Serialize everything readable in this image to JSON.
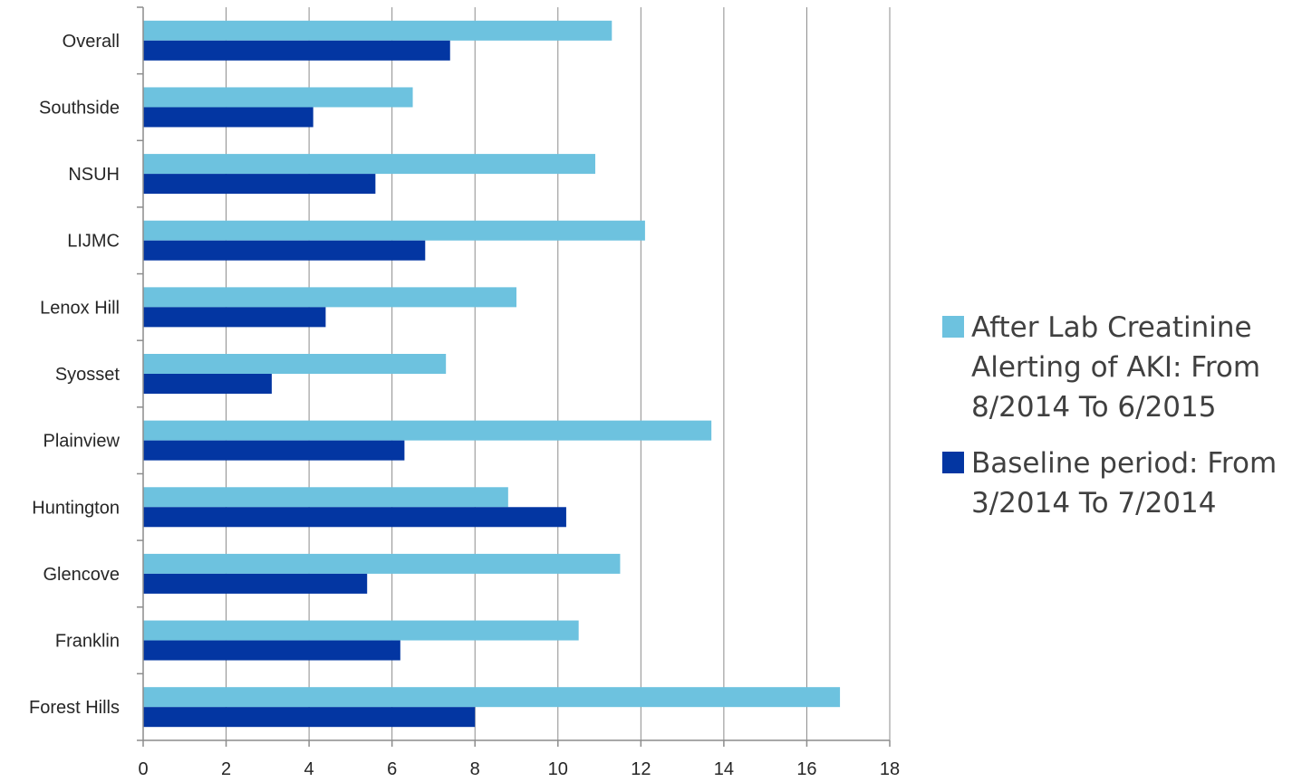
{
  "chart_data": {
    "type": "bar",
    "orientation": "horizontal",
    "categories": [
      "Overall",
      "Southside",
      "NSUH",
      "LIJMC",
      "Lenox Hill",
      "Syosset",
      "Plainview",
      "Huntington",
      "Glencove",
      "Franklin",
      "Forest Hills"
    ],
    "series": [
      {
        "name": "After Lab Creatinine Alerting of AKI: From 8/2014 To 6/2015",
        "color": "#6dc2df",
        "values": [
          11.3,
          6.5,
          10.9,
          12.1,
          9.0,
          7.3,
          13.7,
          8.8,
          11.5,
          10.5,
          16.8
        ]
      },
      {
        "name": "Baseline period: From 3/2014 To 7/2014",
        "color": "#0336a2",
        "values": [
          7.4,
          4.1,
          5.6,
          6.8,
          4.4,
          3.1,
          6.3,
          10.2,
          5.4,
          6.2,
          8.0
        ]
      }
    ],
    "xlim": [
      0,
      18
    ],
    "xticks": [
      "0",
      "2",
      "4",
      "6",
      "8",
      "10",
      "12",
      "14",
      "16",
      "18"
    ],
    "xlabel": "",
    "ylabel": "",
    "title": "",
    "grid": "vertical",
    "legend_position": "right"
  }
}
